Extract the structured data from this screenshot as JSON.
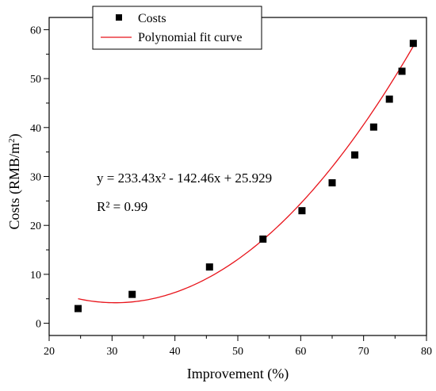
{
  "chart_data": {
    "type": "scatter",
    "xlabel": "Improvement (%)",
    "ylabel": "Costs (RMB/m²)",
    "xlim": [
      20,
      80
    ],
    "ylim": [
      -2.5,
      62.5
    ],
    "x_ticks": [
      20,
      30,
      40,
      50,
      60,
      70,
      80
    ],
    "y_ticks": [
      0,
      10,
      20,
      30,
      40,
      50,
      60
    ],
    "grid": false,
    "legend_position": "top-left",
    "series": [
      {
        "name": "Costs",
        "kind": "scatter",
        "marker": "square",
        "color": "#000000",
        "points": [
          {
            "x": 24.6,
            "y": 3.0
          },
          {
            "x": 33.2,
            "y": 5.9
          },
          {
            "x": 45.5,
            "y": 11.5
          },
          {
            "x": 54.0,
            "y": 17.2
          },
          {
            "x": 60.2,
            "y": 23.0
          },
          {
            "x": 65.0,
            "y": 28.7
          },
          {
            "x": 68.6,
            "y": 34.4
          },
          {
            "x": 71.6,
            "y": 40.1
          },
          {
            "x": 74.1,
            "y": 45.8
          },
          {
            "x": 76.1,
            "y": 51.5
          },
          {
            "x": 77.9,
            "y": 57.2
          }
        ]
      },
      {
        "name": "Polynomial fit curve",
        "kind": "line",
        "color": "#e8141b",
        "coefficients": [
          233.43,
          -142.46,
          25.929
        ],
        "x_range": [
          24.6,
          77.9
        ]
      }
    ],
    "annotations": [
      "y = 233.43x² - 142.46x + 25.929",
      "R² = 0.99"
    ]
  }
}
